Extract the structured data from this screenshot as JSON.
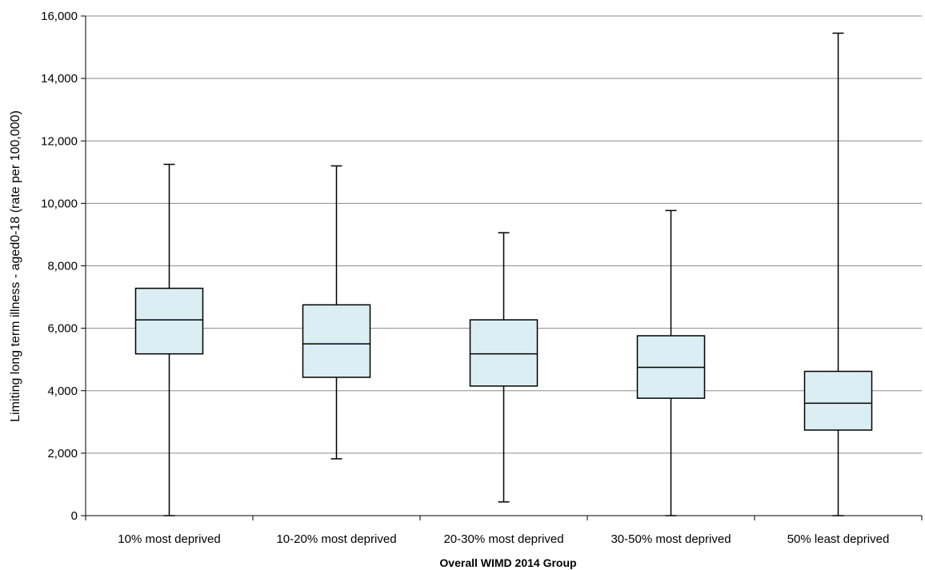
{
  "chart_data": {
    "type": "boxplot",
    "xlabel": "Overall WIMD 2014 Group",
    "ylabel": "Limiting long term illness - aged0-18 (rate per 100,000)",
    "ylim": [
      0,
      16000
    ],
    "yticks": [
      {
        "value": 0,
        "label": "0"
      },
      {
        "value": 2000,
        "label": "2,000"
      },
      {
        "value": 4000,
        "label": "4,000"
      },
      {
        "value": 6000,
        "label": "6,000"
      },
      {
        "value": 8000,
        "label": "8,000"
      },
      {
        "value": 10000,
        "label": "10,000"
      },
      {
        "value": 12000,
        "label": "12,000"
      },
      {
        "value": 14000,
        "label": "14,000"
      },
      {
        "value": 16000,
        "label": "16,000"
      }
    ],
    "grid": true,
    "box_color": "#daeef3",
    "categories": [
      "10% most deprived",
      "10-20% most deprived",
      "20-30% most deprived",
      "30-50% most deprived",
      "50% least deprived"
    ],
    "boxes": [
      {
        "min": 0,
        "q1": 5180,
        "median": 6270,
        "q3": 7280,
        "max": 11250
      },
      {
        "min": 1820,
        "q1": 4430,
        "median": 5500,
        "q3": 6750,
        "max": 11200
      },
      {
        "min": 440,
        "q1": 4150,
        "median": 5180,
        "q3": 6270,
        "max": 9060
      },
      {
        "min": 0,
        "q1": 3760,
        "median": 4750,
        "q3": 5760,
        "max": 9770
      },
      {
        "min": 0,
        "q1": 2740,
        "median": 3600,
        "q3": 4620,
        "max": 15450
      }
    ]
  }
}
